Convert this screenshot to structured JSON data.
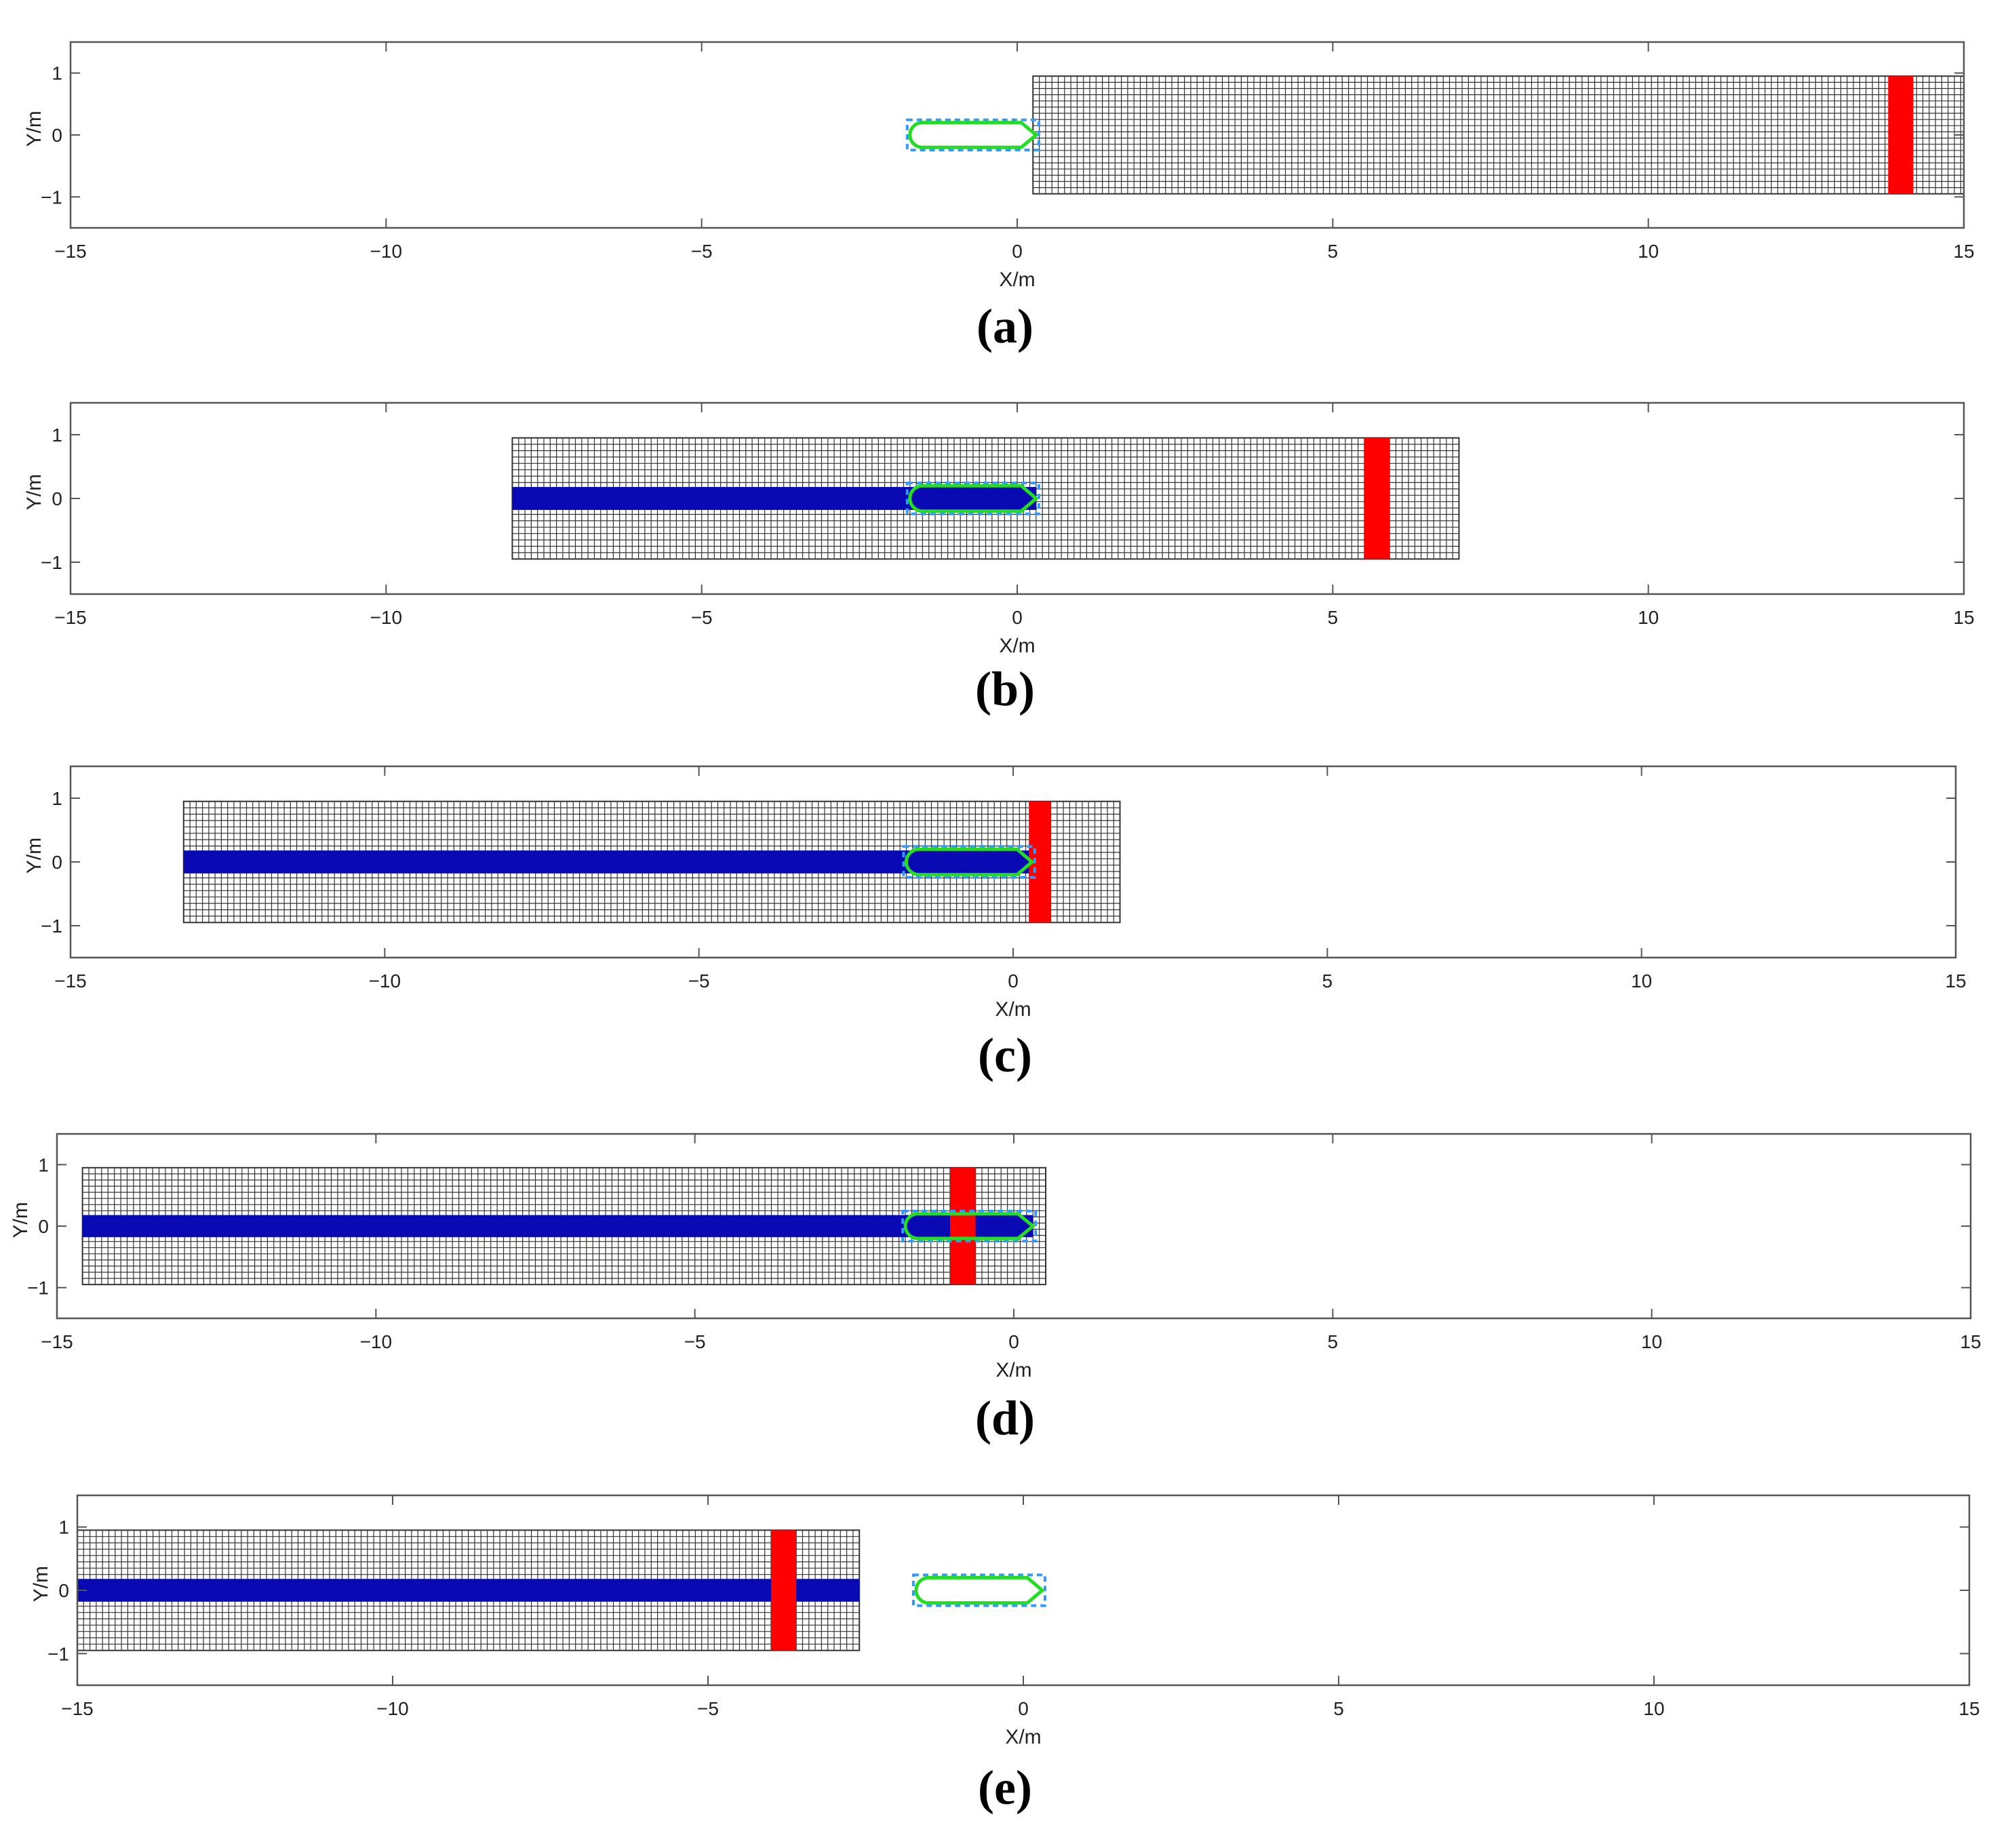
{
  "panels": [
    {
      "id": "a",
      "caption": "(a)",
      "xlabel": "X/m",
      "ylabel": "Y/m",
      "xlim": [
        -15,
        15
      ],
      "ylim": [
        -1.5,
        1.5
      ],
      "xticks": [
        "−15",
        "−10",
        "−5",
        "0",
        "5",
        "10",
        "15"
      ],
      "yticks": [
        "1",
        "0",
        "−1"
      ],
      "grid_region": {
        "x": [
          0.25,
          15
        ],
        "y": [
          -0.95,
          0.95
        ]
      },
      "blue_trail": null,
      "red_band": {
        "x": [
          13.8,
          14.2
        ]
      },
      "vehicle": {
        "x": [
          -1.7,
          0.3
        ],
        "y": [
          -0.2,
          0.2
        ]
      }
    },
    {
      "id": "b",
      "caption": "(b)",
      "xlabel": "X/m",
      "ylabel": "Y/m",
      "xlim": [
        -15,
        15
      ],
      "ylim": [
        -1.5,
        1.5
      ],
      "xticks": [
        "−15",
        "−10",
        "−5",
        "0",
        "5",
        "10",
        "15"
      ],
      "yticks": [
        "1",
        "0",
        "−1"
      ],
      "grid_region": {
        "x": [
          -8,
          7
        ],
        "y": [
          -0.95,
          0.95
        ]
      },
      "blue_trail": {
        "x": [
          -8,
          0.3
        ],
        "y": [
          -0.18,
          0.18
        ]
      },
      "red_band": {
        "x": [
          5.5,
          5.9
        ]
      },
      "vehicle": {
        "x": [
          -1.7,
          0.3
        ],
        "y": [
          -0.2,
          0.2
        ]
      }
    },
    {
      "id": "c",
      "caption": "(c)",
      "xlabel": "X/m",
      "ylabel": "Y/m",
      "xlim": [
        -15,
        15
      ],
      "ylim": [
        -1.5,
        1.5
      ],
      "xticks": [
        "−15",
        "−10",
        "−5",
        "0",
        "5",
        "10",
        "15"
      ],
      "yticks": [
        "1",
        "0",
        "−1"
      ],
      "grid_region": {
        "x": [
          -13.2,
          1.7
        ],
        "y": [
          -0.95,
          0.95
        ]
      },
      "blue_trail": {
        "x": [
          -13.2,
          0.3
        ],
        "y": [
          -0.18,
          0.18
        ]
      },
      "red_band": {
        "x": [
          0.25,
          0.6
        ]
      },
      "vehicle": {
        "x": [
          -1.7,
          0.3
        ],
        "y": [
          -0.2,
          0.2
        ]
      }
    },
    {
      "id": "d",
      "caption": "(d)",
      "xlabel": "X/m",
      "ylabel": "Y/m",
      "xlim": [
        -15,
        15
      ],
      "ylim": [
        -1.5,
        1.5
      ],
      "xticks": [
        "−15",
        "−10",
        "−5",
        "0",
        "5",
        "10",
        "15"
      ],
      "yticks": [
        "1",
        "0",
        "−1"
      ],
      "grid_region": {
        "x": [
          -14.6,
          0.5
        ],
        "y": [
          -0.95,
          0.95
        ]
      },
      "blue_trail": {
        "x": [
          -14.6,
          0.3
        ],
        "y": [
          -0.18,
          0.18
        ]
      },
      "red_band": {
        "x": [
          -1.0,
          -0.6
        ]
      },
      "vehicle": {
        "x": [
          -1.7,
          0.3
        ],
        "y": [
          -0.2,
          0.2
        ]
      }
    },
    {
      "id": "e",
      "caption": "(e)",
      "xlabel": "X/m",
      "ylabel": "Y/m",
      "xlim": [
        -15,
        15
      ],
      "ylim": [
        -1.5,
        1.5
      ],
      "xticks": [
        "−15",
        "−10",
        "−5",
        "0",
        "5",
        "10",
        "15"
      ],
      "yticks": [
        "1",
        "0",
        "−1"
      ],
      "grid_region": {
        "x": [
          -15,
          -2.6
        ],
        "y": [
          -0.95,
          0.95
        ]
      },
      "blue_trail": {
        "x": [
          -15,
          -2.6
        ],
        "y": [
          -0.18,
          0.18
        ]
      },
      "red_band": {
        "x": [
          -4.0,
          -3.6
        ]
      },
      "vehicle": {
        "x": [
          -1.7,
          0.3
        ],
        "y": [
          -0.2,
          0.2
        ]
      }
    }
  ],
  "colors": {
    "grid": "#333333",
    "trail": "#0a0ab4",
    "band": "#ff0000",
    "vehicle_outline": "#22dd22",
    "vehicle_box": "#3399ff",
    "axes": "#555555"
  }
}
